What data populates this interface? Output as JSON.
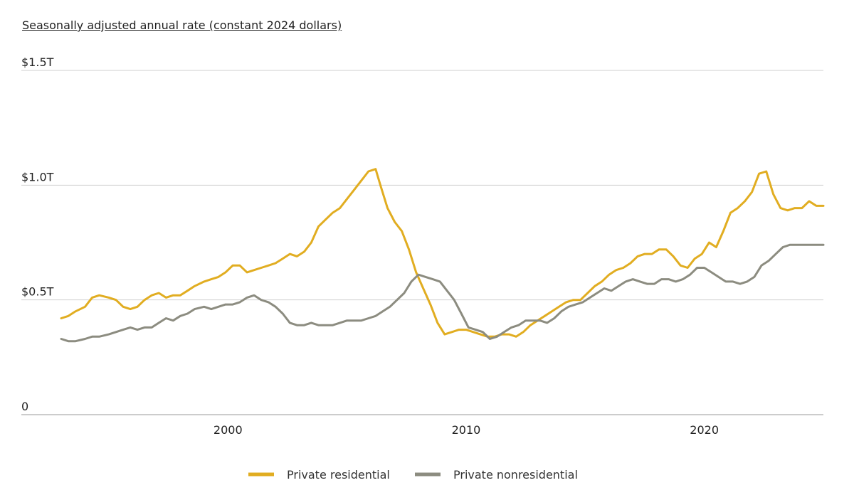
{
  "chart_data": {
    "type": "line",
    "subtitle": "Seasonally adjusted annual rate (constant 2024 dollars)",
    "y_ticks": [
      {
        "value": 0,
        "label": "0"
      },
      {
        "value": 0.5,
        "label": "$0.5T"
      },
      {
        "value": 1.0,
        "label": "$1.0T"
      },
      {
        "value": 1.5,
        "label": "$1.5T"
      }
    ],
    "x_ticks": [
      {
        "value": 2000,
        "label": "2000"
      },
      {
        "value": 2010,
        "label": "2010"
      },
      {
        "value": 2020,
        "label": "2020"
      }
    ],
    "xlim": [
      1993,
      2025
    ],
    "ylim": [
      0,
      1.5
    ],
    "grid": true,
    "legend_position": "bottom-center",
    "series": [
      {
        "name": "Private residential",
        "color": "#e1ad21",
        "x": [
          1993.0,
          1993.3,
          1993.6,
          1994.0,
          1994.3,
          1994.6,
          1995.0,
          1995.3,
          1995.6,
          1995.9,
          1996.2,
          1996.5,
          1996.8,
          1997.1,
          1997.4,
          1997.7,
          1998.0,
          1998.3,
          1998.6,
          1999.0,
          1999.3,
          1999.6,
          1999.9,
          2000.2,
          2000.5,
          2000.8,
          2001.1,
          2001.4,
          2001.7,
          2002.0,
          2002.3,
          2002.6,
          2002.9,
          2003.2,
          2003.5,
          2003.8,
          2004.1,
          2004.4,
          2004.7,
          2005.0,
          2005.3,
          2005.6,
          2005.9,
          2006.2,
          2006.4,
          2006.7,
          2007.0,
          2007.3,
          2007.6,
          2007.9,
          2008.2,
          2008.5,
          2008.8,
          2009.1,
          2009.4,
          2009.7,
          2010.0,
          2010.3,
          2010.6,
          2010.9,
          2011.2,
          2011.5,
          2011.8,
          2012.1,
          2012.4,
          2012.7,
          2013.0,
          2013.3,
          2013.6,
          2013.9,
          2014.2,
          2014.5,
          2014.8,
          2015.1,
          2015.4,
          2015.7,
          2016.0,
          2016.3,
          2016.6,
          2016.9,
          2017.2,
          2017.5,
          2017.8,
          2018.1,
          2018.4,
          2018.7,
          2019.0,
          2019.3,
          2019.6,
          2019.9,
          2020.2,
          2020.5,
          2020.8,
          2021.1,
          2021.4,
          2021.7,
          2022.0,
          2022.3,
          2022.6,
          2022.9,
          2023.2,
          2023.5,
          2023.8,
          2024.1,
          2024.4,
          2024.7,
          2025.0
        ],
        "values": [
          0.42,
          0.43,
          0.45,
          0.47,
          0.51,
          0.52,
          0.51,
          0.5,
          0.47,
          0.46,
          0.47,
          0.5,
          0.52,
          0.53,
          0.51,
          0.52,
          0.52,
          0.54,
          0.56,
          0.58,
          0.59,
          0.6,
          0.62,
          0.65,
          0.65,
          0.62,
          0.63,
          0.64,
          0.65,
          0.66,
          0.68,
          0.7,
          0.69,
          0.71,
          0.75,
          0.82,
          0.85,
          0.88,
          0.9,
          0.94,
          0.98,
          1.02,
          1.06,
          1.07,
          1.0,
          0.9,
          0.84,
          0.8,
          0.72,
          0.62,
          0.55,
          0.48,
          0.4,
          0.35,
          0.36,
          0.37,
          0.37,
          0.36,
          0.35,
          0.34,
          0.34,
          0.35,
          0.35,
          0.34,
          0.36,
          0.39,
          0.41,
          0.43,
          0.45,
          0.47,
          0.49,
          0.5,
          0.5,
          0.53,
          0.56,
          0.58,
          0.61,
          0.63,
          0.64,
          0.66,
          0.69,
          0.7,
          0.7,
          0.72,
          0.72,
          0.69,
          0.65,
          0.64,
          0.68,
          0.7,
          0.75,
          0.73,
          0.8,
          0.88,
          0.9,
          0.93,
          0.97,
          1.05,
          1.06,
          0.96,
          0.9,
          0.89,
          0.9,
          0.9,
          0.93,
          0.91,
          0.91
        ]
      },
      {
        "name": "Private nonresidential",
        "color": "#8c8c80",
        "x": [
          1993.0,
          1993.3,
          1993.6,
          1994.0,
          1994.3,
          1994.6,
          1995.0,
          1995.3,
          1995.6,
          1995.9,
          1996.2,
          1996.5,
          1996.8,
          1997.1,
          1997.4,
          1997.7,
          1998.0,
          1998.3,
          1998.6,
          1999.0,
          1999.3,
          1999.6,
          1999.9,
          2000.2,
          2000.5,
          2000.8,
          2001.1,
          2001.4,
          2001.7,
          2002.0,
          2002.3,
          2002.6,
          2002.9,
          2003.2,
          2003.5,
          2003.8,
          2004.1,
          2004.4,
          2004.7,
          2005.0,
          2005.3,
          2005.6,
          2005.9,
          2006.2,
          2006.5,
          2006.8,
          2007.1,
          2007.4,
          2007.7,
          2008.0,
          2008.3,
          2008.6,
          2008.9,
          2009.2,
          2009.5,
          2009.8,
          2010.1,
          2010.4,
          2010.7,
          2011.0,
          2011.3,
          2011.6,
          2011.9,
          2012.2,
          2012.5,
          2012.8,
          2013.1,
          2013.4,
          2013.7,
          2014.0,
          2014.3,
          2014.6,
          2014.9,
          2015.2,
          2015.5,
          2015.8,
          2016.1,
          2016.4,
          2016.7,
          2017.0,
          2017.3,
          2017.6,
          2017.9,
          2018.2,
          2018.5,
          2018.8,
          2019.1,
          2019.4,
          2019.7,
          2020.0,
          2020.3,
          2020.6,
          2020.9,
          2021.2,
          2021.5,
          2021.8,
          2022.1,
          2022.4,
          2022.7,
          2023.0,
          2023.3,
          2023.6,
          2023.9,
          2024.2,
          2024.5,
          2024.8,
          2025.0
        ],
        "values": [
          0.33,
          0.32,
          0.32,
          0.33,
          0.34,
          0.34,
          0.35,
          0.36,
          0.37,
          0.38,
          0.37,
          0.38,
          0.38,
          0.4,
          0.42,
          0.41,
          0.43,
          0.44,
          0.46,
          0.47,
          0.46,
          0.47,
          0.48,
          0.48,
          0.49,
          0.51,
          0.52,
          0.5,
          0.49,
          0.47,
          0.44,
          0.4,
          0.39,
          0.39,
          0.4,
          0.39,
          0.39,
          0.39,
          0.4,
          0.41,
          0.41,
          0.41,
          0.42,
          0.43,
          0.45,
          0.47,
          0.5,
          0.53,
          0.58,
          0.61,
          0.6,
          0.59,
          0.58,
          0.54,
          0.5,
          0.44,
          0.38,
          0.37,
          0.36,
          0.33,
          0.34,
          0.36,
          0.38,
          0.39,
          0.41,
          0.41,
          0.41,
          0.4,
          0.42,
          0.45,
          0.47,
          0.48,
          0.49,
          0.51,
          0.53,
          0.55,
          0.54,
          0.56,
          0.58,
          0.59,
          0.58,
          0.57,
          0.57,
          0.59,
          0.59,
          0.58,
          0.59,
          0.61,
          0.64,
          0.64,
          0.62,
          0.6,
          0.58,
          0.58,
          0.57,
          0.58,
          0.6,
          0.65,
          0.67,
          0.7,
          0.73,
          0.74,
          0.74,
          0.74,
          0.74,
          0.74,
          0.74
        ]
      }
    ]
  }
}
